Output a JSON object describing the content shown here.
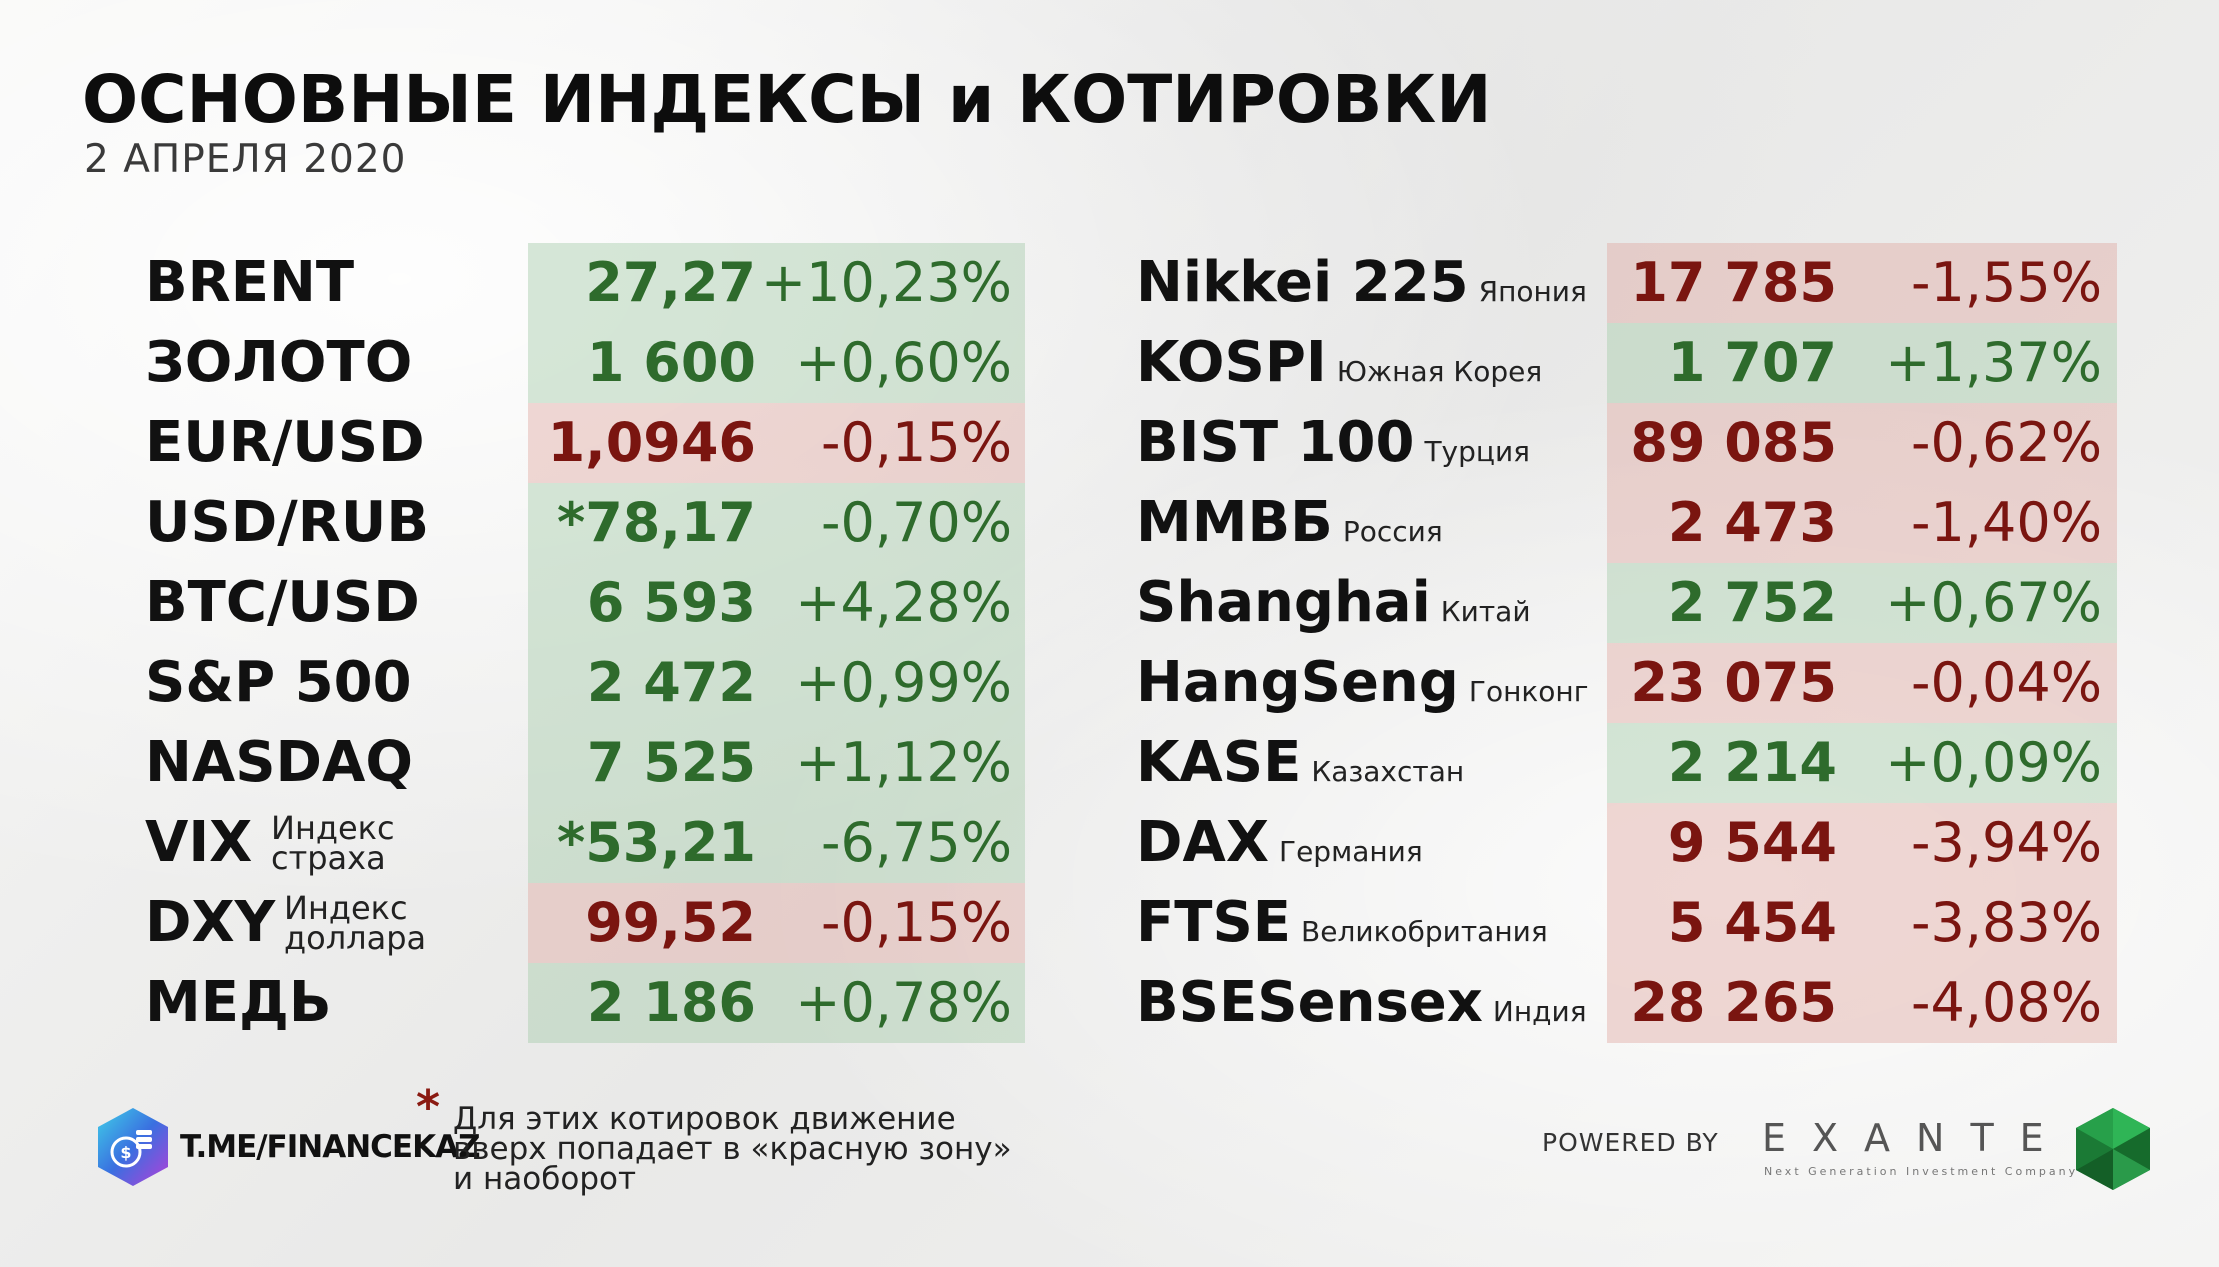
{
  "header": {
    "title": "ОСНОВНЫЕ ИНДЕКСЫ и КОТИРОВКИ",
    "date": "2 АПРЕЛЯ 2020"
  },
  "left_table": [
    {
      "name": "BRENT",
      "sub": "",
      "value": "27,27",
      "change": "+10,23%",
      "trend": "up"
    },
    {
      "name": "ЗОЛОТО",
      "sub": "",
      "value": "1 600",
      "change": "+0,60%",
      "trend": "up"
    },
    {
      "name": "EUR/USD",
      "sub": "",
      "value": "1,0946",
      "change": "-0,15%",
      "trend": "down"
    },
    {
      "name": "USD/RUB",
      "sub": "",
      "value": "*78,17",
      "change": "-0,70%",
      "trend": "up"
    },
    {
      "name": "BTC/USD",
      "sub": "",
      "value": "6 593",
      "change": "+4,28%",
      "trend": "up"
    },
    {
      "name": "S&P 500",
      "sub": "",
      "value": "2 472",
      "change": "+0,99%",
      "trend": "up"
    },
    {
      "name": "NASDAQ",
      "sub": "",
      "value": "7 525",
      "change": "+1,12%",
      "trend": "up"
    },
    {
      "name": "VIX",
      "sub_line1": "Индекс",
      "sub_line2": "страха",
      "value": "*53,21",
      "change": "-6,75%",
      "trend": "up"
    },
    {
      "name": "DXY",
      "sub_line1": "Индекс",
      "sub_line2": "доллара",
      "value": "99,52",
      "change": "-0,15%",
      "trend": "down"
    },
    {
      "name": "МЕДЬ",
      "sub": "",
      "value": "2 186",
      "change": "+0,78%",
      "trend": "up"
    }
  ],
  "right_table": [
    {
      "name": "Nikkei 225",
      "sub": "Япония",
      "value": "17 785",
      "change": "-1,55%",
      "trend": "down"
    },
    {
      "name": "KOSPI",
      "sub": "Южная Корея",
      "value": "1 707",
      "change": "+1,37%",
      "trend": "up"
    },
    {
      "name": "BIST 100",
      "sub": "Турция",
      "value": "89 085",
      "change": "-0,62%",
      "trend": "down"
    },
    {
      "name": "ММВБ",
      "sub": "Россия",
      "value": "2 473",
      "change": "-1,40%",
      "trend": "down"
    },
    {
      "name": "Shanghai",
      "sub": "Китай",
      "value": "2 752",
      "change": "+0,67%",
      "trend": "up"
    },
    {
      "name": "HangSeng",
      "sub": "Гонконг",
      "value": "23 075",
      "change": "-0,04%",
      "trend": "down"
    },
    {
      "name": "KASE",
      "sub": "Казахстан",
      "value": "2 214",
      "change": "+0,09%",
      "trend": "up"
    },
    {
      "name": "DAX",
      "sub": "Германия",
      "value": "9 544",
      "change": "-3,94%",
      "trend": "down"
    },
    {
      "name": "FTSE",
      "sub": "Великобритания",
      "value": "5 454",
      "change": "-3,83%",
      "trend": "down"
    },
    {
      "name": "BSESensex",
      "sub": "Индия",
      "value": "28 265",
      "change": "-4,08%",
      "trend": "down"
    }
  ],
  "footer": {
    "channel": "T.ME/FINANCEKAZ",
    "note_star": "*",
    "note_lines": [
      "Для этих котировок движение",
      "вверх попадает в «красную зону»",
      "и наоборот"
    ],
    "powered_by": "POWERED BY",
    "brand": "EXANTE",
    "brand_tagline": "Next Generation Investment Company"
  },
  "colors": {
    "up_bg": "#a6cdaa",
    "down_bg": "#e1aaa5",
    "up_text": "#2e6b2c",
    "down_text": "#7a1510"
  },
  "icons": [
    "financekaz-logo-icon",
    "exante-emerald-icon"
  ]
}
